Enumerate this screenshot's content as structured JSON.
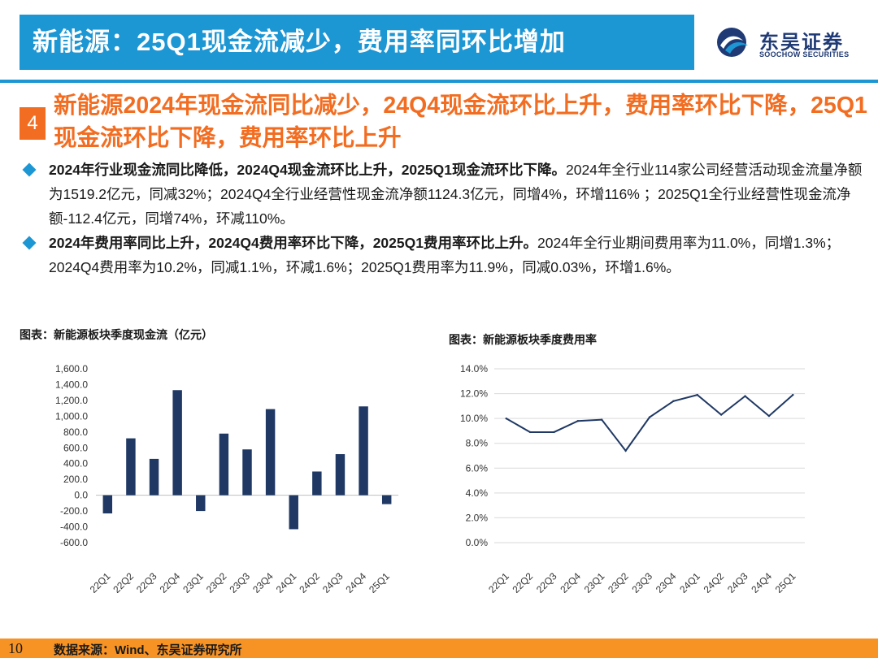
{
  "header": {
    "title": "新能源：25Q1现金流减少，费用率同环比增加",
    "logo_cn": "东吴证券",
    "logo_en": "SOOCHOW SECURITIES",
    "accent_color": "#1d96d4"
  },
  "section": {
    "number": "4",
    "title": "新能源2024年现金流同比减少，24Q4现金流环比上升，费用率环比下降，25Q1现金流环比下降，费用率环比上升",
    "accent_color": "#f26d21"
  },
  "bullets": [
    {
      "bold": "2024年行业现金流同比降低，2024Q4现金流环比上升，2025Q1现金流环比下降。",
      "text": "2024年全行业114家公司经营活动现金流量净额为1519.2亿元，同减32%；2024Q4全行业经营性现金流净额1124.3亿元，同增4%，环增116% ；2025Q1全行业经营性现金流净额-112.4亿元，同增74%，环减110%。"
    },
    {
      "bold": "2024年费用率同比上升，2024Q4费用率环比下降，2025Q1费用率环比上升。",
      "text": "2024年全行业期间费用率为11.0%，同增1.3%；2024Q4费用率为10.2%，同减1.1%，环减1.6%；2025Q1费用率为11.9%，同减0.03%，环增1.6%。"
    }
  ],
  "chart_data": [
    {
      "type": "bar",
      "title": "图表：新能源板块季度现金流（亿元）",
      "categories": [
        "22Q1",
        "22Q2",
        "22Q3",
        "22Q4",
        "23Q1",
        "23Q2",
        "23Q3",
        "23Q4",
        "24Q1",
        "24Q2",
        "24Q3",
        "24Q4",
        "25Q1"
      ],
      "values": [
        -230,
        720,
        460,
        1330,
        -200,
        780,
        580,
        1090,
        -430,
        300,
        520,
        1124.3,
        -112.4
      ],
      "ylim": [
        -600,
        1600
      ],
      "yticks": [
        "1,600.0",
        "1,400.0",
        "1,200.0",
        "1,000.0",
        "800.0",
        "600.0",
        "400.0",
        "200.0",
        "0.0",
        "-200.0",
        "-400.0",
        "-600.0"
      ],
      "grid": false,
      "color": "#1f3864"
    },
    {
      "type": "line",
      "title": "图表：新能源板块季度费用率",
      "categories": [
        "22Q1",
        "22Q2",
        "22Q3",
        "22Q4",
        "23Q1",
        "23Q2",
        "23Q3",
        "23Q4",
        "24Q1",
        "24Q2",
        "24Q3",
        "24Q4",
        "25Q1"
      ],
      "values": [
        10.0,
        8.9,
        8.9,
        9.8,
        9.9,
        7.4,
        10.1,
        11.4,
        11.9,
        10.3,
        11.8,
        10.2,
        11.9
      ],
      "ylim": [
        0,
        14
      ],
      "yticks": [
        "14.0%",
        "12.0%",
        "10.0%",
        "8.0%",
        "6.0%",
        "4.0%",
        "2.0%",
        "0.0%"
      ],
      "grid": true,
      "color": "#1f3864"
    }
  ],
  "footer": {
    "page": "10",
    "source": "数据来源：Wind、东吴证券研究所",
    "color": "#f79324"
  }
}
